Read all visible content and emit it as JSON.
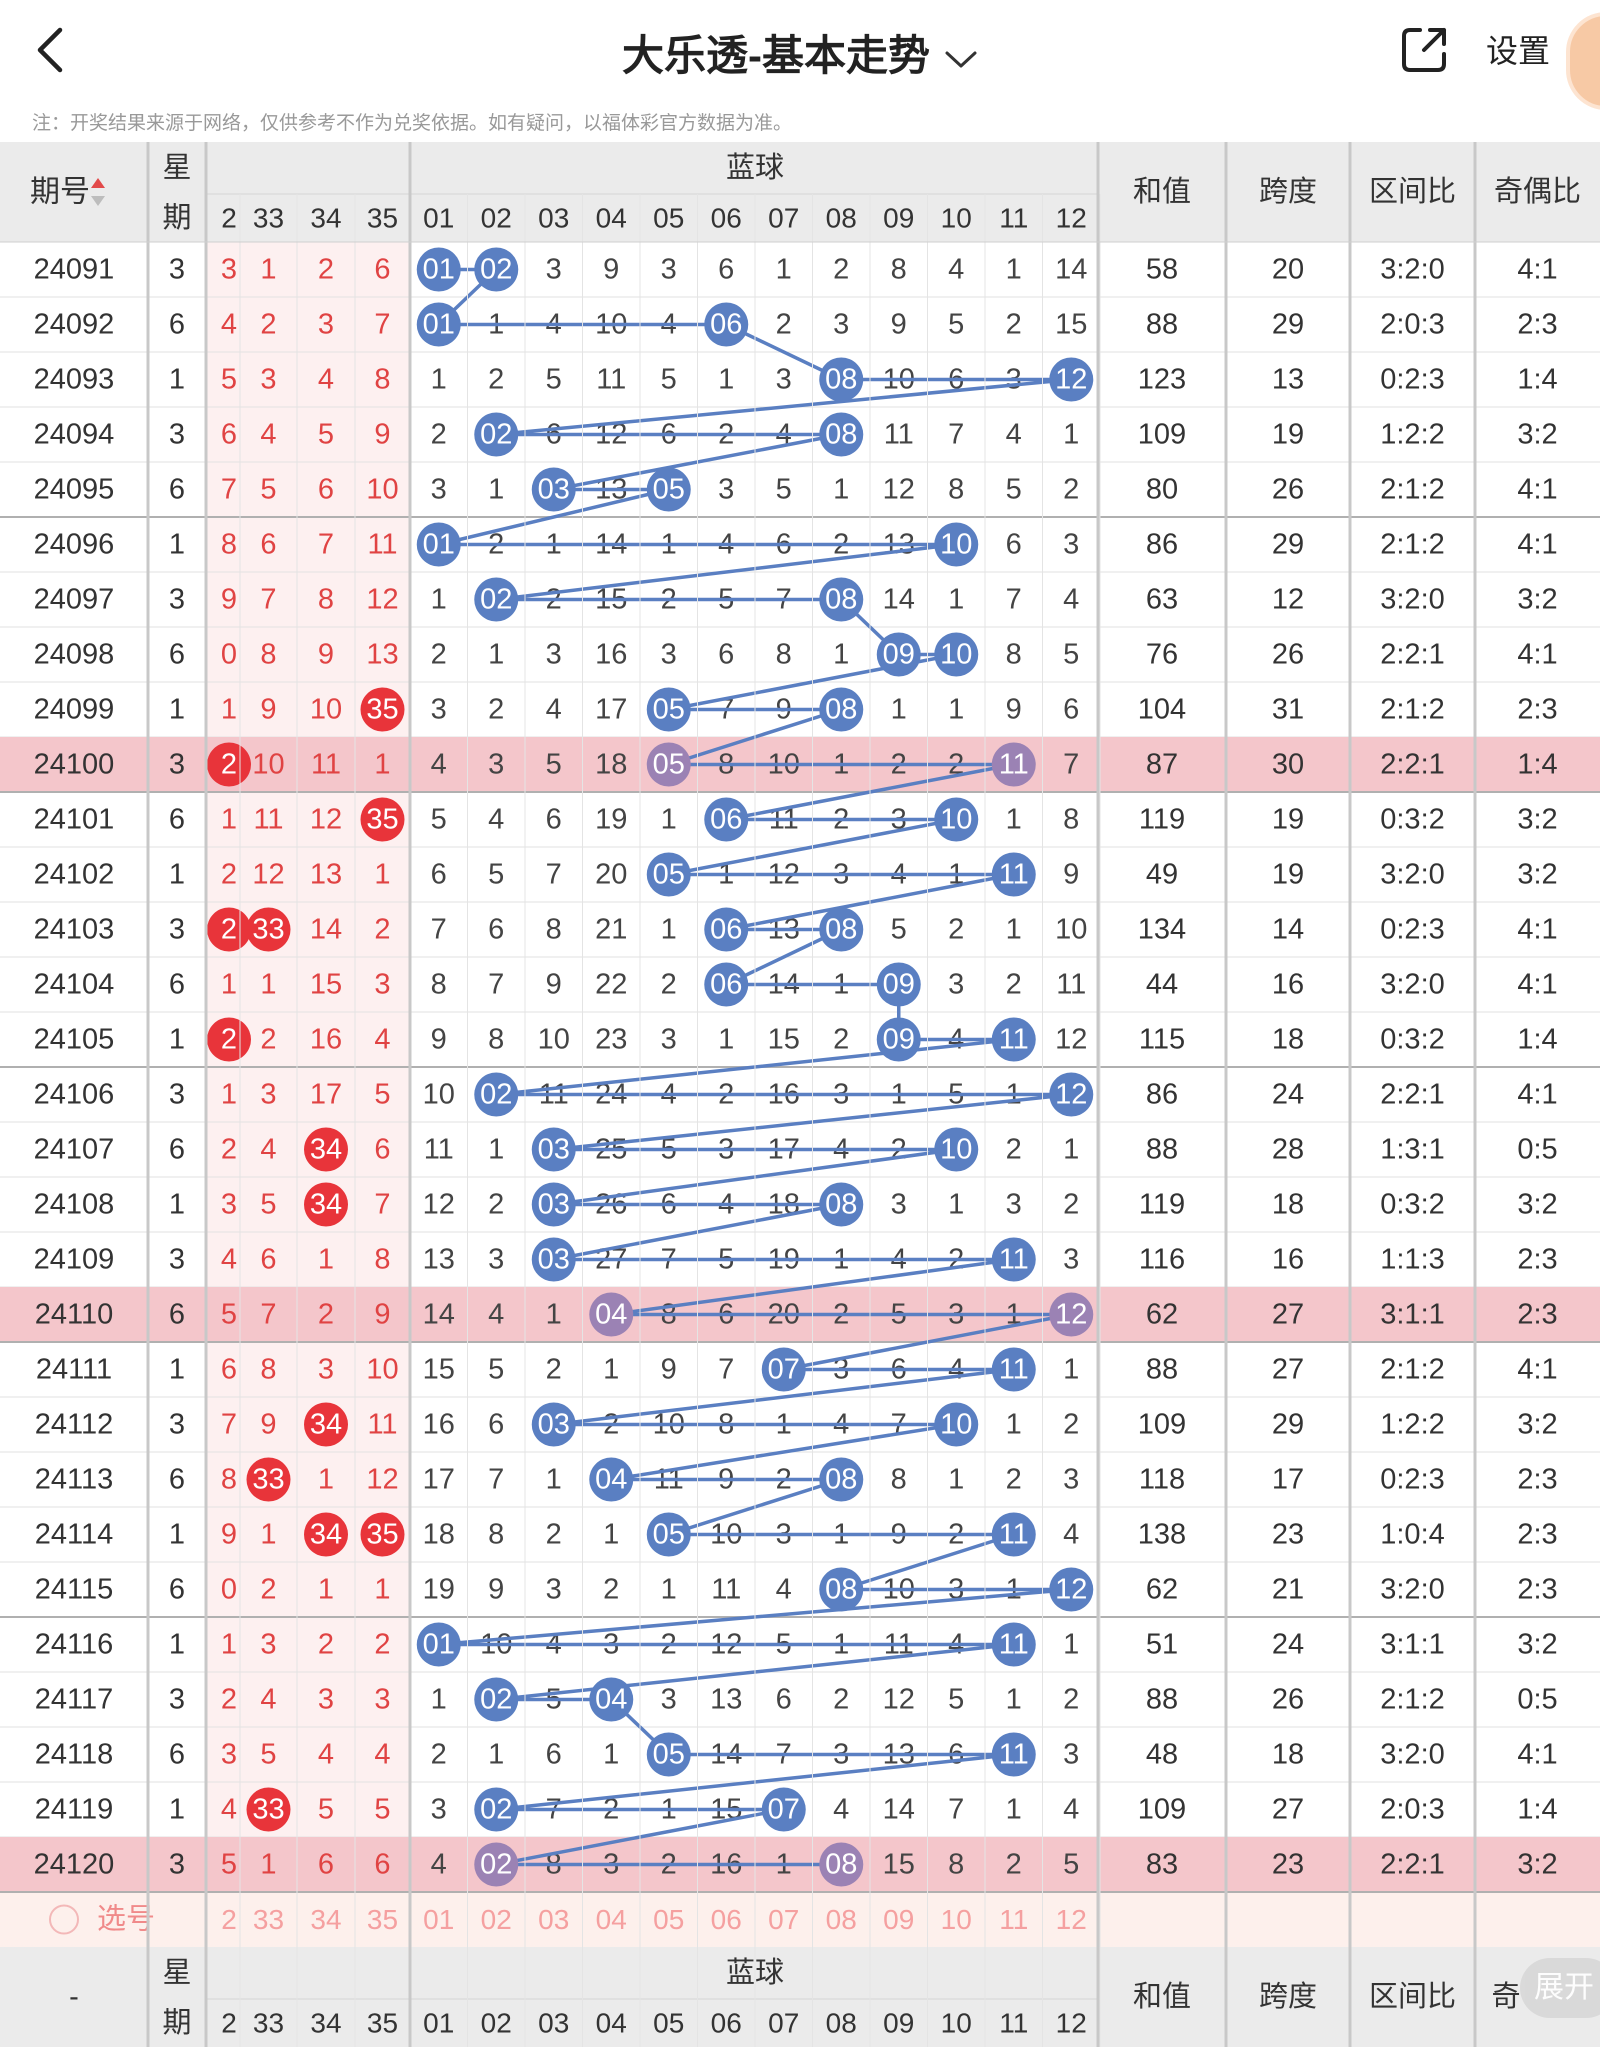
{
  "header": {
    "title": "大乐透-基本走势",
    "settings_label": "设置",
    "notice": "注：开奖结果来源于网络，仅供参考不作为兑奖依据。如有疑问，以福体彩官方数据为准。",
    "icons": {
      "back": "chevron-left-icon",
      "share": "share-icon",
      "dropdown": "chevron-down-icon"
    }
  },
  "table": {
    "col_issue": "期号",
    "col_week_top": "星",
    "col_week_bottom": "期",
    "blue_group": "蓝球",
    "col_sum": "和值",
    "col_span": "跨度",
    "col_zone": "区间比",
    "col_oddeven": "奇偶比",
    "col_oddeven_cut": "奇",
    "front_cols": [
      "2",
      "33",
      "34",
      "35"
    ],
    "blue_cols": [
      "01",
      "02",
      "03",
      "04",
      "05",
      "06",
      "07",
      "08",
      "09",
      "10",
      "11",
      "12"
    ],
    "select_label": "选号",
    "footer_issue": "-",
    "expand_label": "展开",
    "rows": [
      {
        "issue": "24091",
        "week": "3",
        "front": [
          "3",
          "1",
          "2",
          "6"
        ],
        "fhit": [],
        "blue": [
          "01",
          "02",
          "3",
          "9",
          "3",
          "6",
          "1",
          "2",
          "8",
          "4",
          "1",
          "14"
        ],
        "bhit": [
          1,
          2
        ],
        "sum": "58",
        "span": "20",
        "zone": "3:2:0",
        "oe": "4:1"
      },
      {
        "issue": "24092",
        "week": "6",
        "front": [
          "4",
          "2",
          "3",
          "7"
        ],
        "fhit": [],
        "blue": [
          "01",
          "1",
          "4",
          "10",
          "4",
          "06",
          "2",
          "3",
          "9",
          "5",
          "2",
          "15"
        ],
        "bhit": [
          1,
          6
        ],
        "sum": "88",
        "span": "29",
        "zone": "2:0:3",
        "oe": "2:3"
      },
      {
        "issue": "24093",
        "week": "1",
        "front": [
          "5",
          "3",
          "4",
          "8"
        ],
        "fhit": [],
        "blue": [
          "1",
          "2",
          "5",
          "11",
          "5",
          "1",
          "3",
          "08",
          "10",
          "6",
          "3",
          "12"
        ],
        "bhit": [
          8,
          12
        ],
        "sum": "123",
        "span": "13",
        "zone": "0:2:3",
        "oe": "1:4"
      },
      {
        "issue": "24094",
        "week": "3",
        "front": [
          "6",
          "4",
          "5",
          "9"
        ],
        "fhit": [],
        "blue": [
          "2",
          "02",
          "6",
          "12",
          "6",
          "2",
          "4",
          "08",
          "11",
          "7",
          "4",
          "1"
        ],
        "bhit": [
          2,
          8
        ],
        "sum": "109",
        "span": "19",
        "zone": "1:2:2",
        "oe": "3:2"
      },
      {
        "issue": "24095",
        "week": "6",
        "front": [
          "7",
          "5",
          "6",
          "10"
        ],
        "fhit": [],
        "blue": [
          "3",
          "1",
          "03",
          "13",
          "05",
          "3",
          "5",
          "1",
          "12",
          "8",
          "5",
          "2"
        ],
        "bhit": [
          3,
          5
        ],
        "sum": "80",
        "span": "26",
        "zone": "2:1:2",
        "oe": "4:1"
      },
      {
        "issue": "24096",
        "week": "1",
        "front": [
          "8",
          "6",
          "7",
          "11"
        ],
        "fhit": [],
        "blue": [
          "01",
          "2",
          "1",
          "14",
          "1",
          "4",
          "6",
          "2",
          "13",
          "10",
          "6",
          "3"
        ],
        "bhit": [
          1,
          10
        ],
        "sum": "86",
        "span": "29",
        "zone": "2:1:2",
        "oe": "4:1"
      },
      {
        "issue": "24097",
        "week": "3",
        "front": [
          "9",
          "7",
          "8",
          "12"
        ],
        "fhit": [],
        "blue": [
          "1",
          "02",
          "2",
          "15",
          "2",
          "5",
          "7",
          "08",
          "14",
          "1",
          "7",
          "4"
        ],
        "bhit": [
          2,
          8
        ],
        "sum": "63",
        "span": "12",
        "zone": "3:2:0",
        "oe": "3:2"
      },
      {
        "issue": "24098",
        "week": "6",
        "front": [
          "0",
          "8",
          "9",
          "13"
        ],
        "fhit": [],
        "blue": [
          "2",
          "1",
          "3",
          "16",
          "3",
          "6",
          "8",
          "1",
          "09",
          "10",
          "8",
          "5"
        ],
        "bhit": [
          9,
          10
        ],
        "sum": "76",
        "span": "26",
        "zone": "2:2:1",
        "oe": "4:1"
      },
      {
        "issue": "24099",
        "week": "1",
        "front": [
          "1",
          "9",
          "10",
          "35"
        ],
        "fhit": [
          35
        ],
        "blue": [
          "3",
          "2",
          "4",
          "17",
          "05",
          "7",
          "9",
          "08",
          "1",
          "1",
          "9",
          "6"
        ],
        "bhit": [
          5,
          8
        ],
        "sum": "104",
        "span": "31",
        "zone": "2:1:2",
        "oe": "2:3"
      },
      {
        "issue": "24100",
        "week": "3",
        "front": [
          "2",
          "10",
          "11",
          "1"
        ],
        "fhit": [
          2
        ],
        "blue": [
          "4",
          "3",
          "5",
          "18",
          "05",
          "8",
          "10",
          "1",
          "2",
          "2",
          "11",
          "7"
        ],
        "bhit": [
          5,
          11
        ],
        "sum": "87",
        "span": "30",
        "zone": "2:2:1",
        "oe": "1:4",
        "hl": true
      },
      {
        "issue": "24101",
        "week": "6",
        "front": [
          "1",
          "11",
          "12",
          "35"
        ],
        "fhit": [
          35
        ],
        "blue": [
          "5",
          "4",
          "6",
          "19",
          "1",
          "06",
          "11",
          "2",
          "3",
          "10",
          "1",
          "8"
        ],
        "bhit": [
          6,
          10
        ],
        "sum": "119",
        "span": "19",
        "zone": "0:3:2",
        "oe": "3:2"
      },
      {
        "issue": "24102",
        "week": "1",
        "front": [
          "2",
          "12",
          "13",
          "1"
        ],
        "fhit": [],
        "blue": [
          "6",
          "5",
          "7",
          "20",
          "05",
          "1",
          "12",
          "3",
          "4",
          "1",
          "11",
          "9"
        ],
        "bhit": [
          5,
          11
        ],
        "sum": "49",
        "span": "19",
        "zone": "3:2:0",
        "oe": "3:2"
      },
      {
        "issue": "24103",
        "week": "3",
        "front": [
          "2",
          "33",
          "14",
          "2"
        ],
        "fhit": [
          2,
          33
        ],
        "blue": [
          "7",
          "6",
          "8",
          "21",
          "1",
          "06",
          "13",
          "08",
          "5",
          "2",
          "1",
          "10"
        ],
        "bhit": [
          6,
          8
        ],
        "sum": "134",
        "span": "14",
        "zone": "0:2:3",
        "oe": "4:1"
      },
      {
        "issue": "24104",
        "week": "6",
        "front": [
          "1",
          "1",
          "15",
          "3"
        ],
        "fhit": [],
        "blue": [
          "8",
          "7",
          "9",
          "22",
          "2",
          "06",
          "14",
          "1",
          "09",
          "3",
          "2",
          "11"
        ],
        "bhit": [
          6,
          9
        ],
        "sum": "44",
        "span": "16",
        "zone": "3:2:0",
        "oe": "4:1"
      },
      {
        "issue": "24105",
        "week": "1",
        "front": [
          "2",
          "2",
          "16",
          "4"
        ],
        "fhit": [
          2
        ],
        "blue": [
          "9",
          "8",
          "10",
          "23",
          "3",
          "1",
          "15",
          "2",
          "09",
          "4",
          "11",
          "12"
        ],
        "bhit": [
          9,
          11
        ],
        "sum": "115",
        "span": "18",
        "zone": "0:3:2",
        "oe": "1:4"
      },
      {
        "issue": "24106",
        "week": "3",
        "front": [
          "1",
          "3",
          "17",
          "5"
        ],
        "fhit": [],
        "blue": [
          "10",
          "02",
          "11",
          "24",
          "4",
          "2",
          "16",
          "3",
          "1",
          "5",
          "1",
          "12"
        ],
        "bhit": [
          2,
          12
        ],
        "sum": "86",
        "span": "24",
        "zone": "2:2:1",
        "oe": "4:1"
      },
      {
        "issue": "24107",
        "week": "6",
        "front": [
          "2",
          "4",
          "34",
          "6"
        ],
        "fhit": [
          34
        ],
        "blue": [
          "11",
          "1",
          "03",
          "25",
          "5",
          "3",
          "17",
          "4",
          "2",
          "10",
          "2",
          "1"
        ],
        "bhit": [
          3,
          10
        ],
        "sum": "88",
        "span": "28",
        "zone": "1:3:1",
        "oe": "0:5"
      },
      {
        "issue": "24108",
        "week": "1",
        "front": [
          "3",
          "5",
          "34",
          "7"
        ],
        "fhit": [
          34
        ],
        "blue": [
          "12",
          "2",
          "03",
          "26",
          "6",
          "4",
          "18",
          "08",
          "3",
          "1",
          "3",
          "2"
        ],
        "bhit": [
          3,
          8
        ],
        "sum": "119",
        "span": "18",
        "zone": "0:3:2",
        "oe": "3:2"
      },
      {
        "issue": "24109",
        "week": "3",
        "front": [
          "4",
          "6",
          "1",
          "8"
        ],
        "fhit": [],
        "blue": [
          "13",
          "3",
          "03",
          "27",
          "7",
          "5",
          "19",
          "1",
          "4",
          "2",
          "11",
          "3"
        ],
        "bhit": [
          3,
          11
        ],
        "sum": "116",
        "span": "16",
        "zone": "1:1:3",
        "oe": "2:3"
      },
      {
        "issue": "24110",
        "week": "6",
        "front": [
          "5",
          "7",
          "2",
          "9"
        ],
        "fhit": [],
        "blue": [
          "14",
          "4",
          "1",
          "04",
          "8",
          "6",
          "20",
          "2",
          "5",
          "3",
          "1",
          "12"
        ],
        "bhit": [
          4,
          12
        ],
        "sum": "62",
        "span": "27",
        "zone": "3:1:1",
        "oe": "2:3",
        "hl": true
      },
      {
        "issue": "24111",
        "week": "1",
        "front": [
          "6",
          "8",
          "3",
          "10"
        ],
        "fhit": [],
        "blue": [
          "15",
          "5",
          "2",
          "1",
          "9",
          "7",
          "07",
          "3",
          "6",
          "4",
          "11",
          "1"
        ],
        "bhit": [
          7,
          11
        ],
        "sum": "88",
        "span": "27",
        "zone": "2:1:2",
        "oe": "4:1"
      },
      {
        "issue": "24112",
        "week": "3",
        "front": [
          "7",
          "9",
          "34",
          "11"
        ],
        "fhit": [
          34
        ],
        "blue": [
          "16",
          "6",
          "03",
          "2",
          "10",
          "8",
          "1",
          "4",
          "7",
          "10",
          "1",
          "2"
        ],
        "bhit": [
          3,
          10
        ],
        "sum": "109",
        "span": "29",
        "zone": "1:2:2",
        "oe": "3:2"
      },
      {
        "issue": "24113",
        "week": "6",
        "front": [
          "8",
          "33",
          "1",
          "12"
        ],
        "fhit": [
          33
        ],
        "blue": [
          "17",
          "7",
          "1",
          "04",
          "11",
          "9",
          "2",
          "08",
          "8",
          "1",
          "2",
          "3"
        ],
        "bhit": [
          4,
          8
        ],
        "sum": "118",
        "span": "17",
        "zone": "0:2:3",
        "oe": "2:3"
      },
      {
        "issue": "24114",
        "week": "1",
        "front": [
          "9",
          "1",
          "34",
          "35"
        ],
        "fhit": [
          34,
          35
        ],
        "blue": [
          "18",
          "8",
          "2",
          "1",
          "05",
          "10",
          "3",
          "1",
          "9",
          "2",
          "11",
          "4"
        ],
        "bhit": [
          5,
          11
        ],
        "sum": "138",
        "span": "23",
        "zone": "1:0:4",
        "oe": "2:3"
      },
      {
        "issue": "24115",
        "week": "6",
        "front": [
          "0",
          "2",
          "1",
          "1"
        ],
        "fhit": [],
        "blue": [
          "19",
          "9",
          "3",
          "2",
          "1",
          "11",
          "4",
          "08",
          "10",
          "3",
          "1",
          "12"
        ],
        "bhit": [
          8,
          12
        ],
        "sum": "62",
        "span": "21",
        "zone": "3:2:0",
        "oe": "2:3"
      },
      {
        "issue": "24116",
        "week": "1",
        "front": [
          "1",
          "3",
          "2",
          "2"
        ],
        "fhit": [],
        "blue": [
          "01",
          "10",
          "4",
          "3",
          "2",
          "12",
          "5",
          "1",
          "11",
          "4",
          "11",
          "1"
        ],
        "bhit": [
          1,
          11
        ],
        "sum": "51",
        "span": "24",
        "zone": "3:1:1",
        "oe": "3:2"
      },
      {
        "issue": "24117",
        "week": "3",
        "front": [
          "2",
          "4",
          "3",
          "3"
        ],
        "fhit": [],
        "blue": [
          "1",
          "02",
          "5",
          "04",
          "3",
          "13",
          "6",
          "2",
          "12",
          "5",
          "1",
          "2"
        ],
        "bhit": [
          2,
          4
        ],
        "sum": "88",
        "span": "26",
        "zone": "2:1:2",
        "oe": "0:5"
      },
      {
        "issue": "24118",
        "week": "6",
        "front": [
          "3",
          "5",
          "4",
          "4"
        ],
        "fhit": [],
        "blue": [
          "2",
          "1",
          "6",
          "1",
          "05",
          "14",
          "7",
          "3",
          "13",
          "6",
          "11",
          "3"
        ],
        "bhit": [
          5,
          11
        ],
        "sum": "48",
        "span": "18",
        "zone": "3:2:0",
        "oe": "4:1"
      },
      {
        "issue": "24119",
        "week": "1",
        "front": [
          "4",
          "33",
          "5",
          "5"
        ],
        "fhit": [
          33
        ],
        "blue": [
          "3",
          "02",
          "7",
          "2",
          "1",
          "15",
          "07",
          "4",
          "14",
          "7",
          "1",
          "4"
        ],
        "bhit": [
          2,
          7
        ],
        "sum": "109",
        "span": "27",
        "zone": "2:0:3",
        "oe": "1:4"
      },
      {
        "issue": "24120",
        "week": "3",
        "front": [
          "5",
          "1",
          "6",
          "6"
        ],
        "fhit": [],
        "blue": [
          "4",
          "02",
          "8",
          "3",
          "2",
          "16",
          "1",
          "08",
          "15",
          "8",
          "2",
          "5"
        ],
        "bhit": [
          2,
          8
        ],
        "sum": "83",
        "span": "23",
        "zone": "2:2:1",
        "oe": "3:2",
        "hl": true
      }
    ]
  },
  "colors": {
    "blue_ball": "#5a7fc2",
    "red_ball": "#e8343a",
    "red_text": "#e04343",
    "row_highlight": "#f4c6cb",
    "front_bg": "#fdf0f0"
  }
}
